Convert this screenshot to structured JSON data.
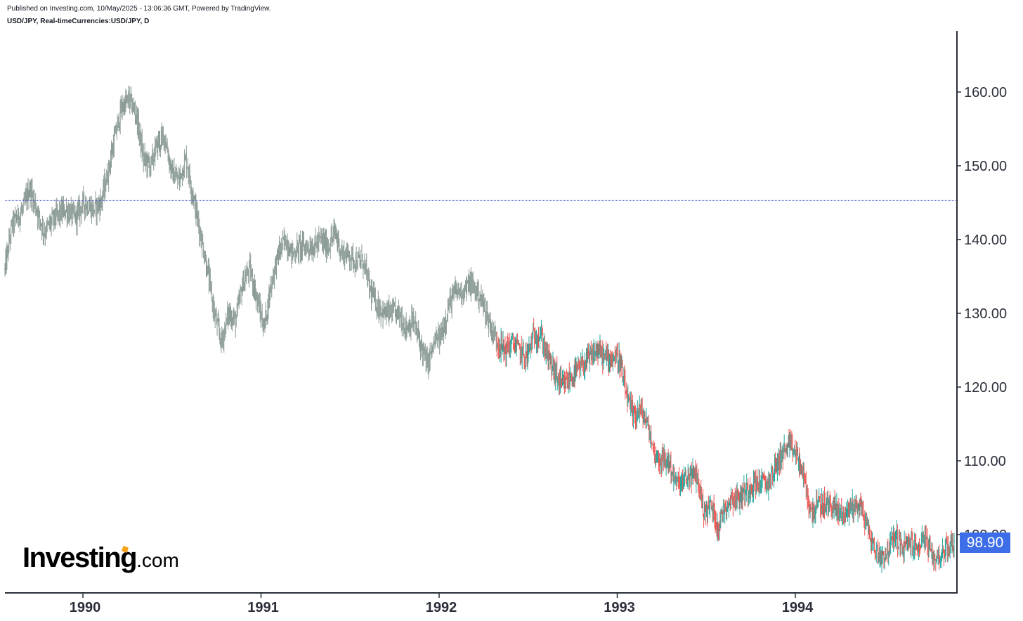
{
  "header": {
    "published": "Published on Investing.com, 10/May/2025 - 13:06:36 GMT, Powered by TradingView.",
    "symbol": "USD/JPY, Real-timeCurrencies:USD/JPY, D"
  },
  "logo": {
    "main": "Investing",
    "suffix": ".com"
  },
  "last_price_label": "98.90",
  "colors": {
    "up": "#26a69a",
    "down": "#ef5350",
    "neutral": "#8a9a94",
    "hline": "#4f5bd5",
    "price_tag": "#3d6ee8"
  },
  "chart_data": {
    "type": "ohlc-bars",
    "interval": "D",
    "xaxis": {
      "labels": [
        "1990",
        "1991",
        "1992",
        "1993",
        "1994"
      ],
      "range": [
        1989.58,
        1994.93
      ]
    },
    "yaxis": {
      "labels": [
        "160.00",
        "150.00",
        "140.00",
        "130.00",
        "120.00",
        "110.00",
        "100.00"
      ],
      "range": [
        92,
        168
      ],
      "side": "right"
    },
    "horizontal_line": 145.3,
    "last_price": 98.9,
    "close_path": [
      [
        1989.58,
        136
      ],
      [
        1989.62,
        142
      ],
      [
        1989.68,
        144
      ],
      [
        1989.72,
        147
      ],
      [
        1989.76,
        144
      ],
      [
        1989.8,
        141
      ],
      [
        1989.86,
        143
      ],
      [
        1989.92,
        144
      ],
      [
        1989.98,
        143
      ],
      [
        1990.02,
        145
      ],
      [
        1990.08,
        144
      ],
      [
        1990.12,
        145
      ],
      [
        1990.16,
        149
      ],
      [
        1990.2,
        154
      ],
      [
        1990.24,
        158
      ],
      [
        1990.28,
        159
      ],
      [
        1990.32,
        157
      ],
      [
        1990.36,
        151
      ],
      [
        1990.4,
        150
      ],
      [
        1990.44,
        153
      ],
      [
        1990.48,
        154
      ],
      [
        1990.52,
        149
      ],
      [
        1990.56,
        148
      ],
      [
        1990.6,
        151
      ],
      [
        1990.64,
        146
      ],
      [
        1990.68,
        141
      ],
      [
        1990.72,
        136
      ],
      [
        1990.76,
        130
      ],
      [
        1990.8,
        126
      ],
      [
        1990.84,
        130
      ],
      [
        1990.88,
        129
      ],
      [
        1990.92,
        134
      ],
      [
        1990.96,
        136
      ],
      [
        1991.0,
        132
      ],
      [
        1991.04,
        128
      ],
      [
        1991.08,
        134
      ],
      [
        1991.12,
        138
      ],
      [
        1991.16,
        140
      ],
      [
        1991.2,
        138
      ],
      [
        1991.24,
        139
      ],
      [
        1991.28,
        139
      ],
      [
        1991.32,
        139
      ],
      [
        1991.36,
        140
      ],
      [
        1991.4,
        139
      ],
      [
        1991.44,
        141
      ],
      [
        1991.48,
        138
      ],
      [
        1991.52,
        138
      ],
      [
        1991.56,
        137
      ],
      [
        1991.6,
        137
      ],
      [
        1991.64,
        133
      ],
      [
        1991.68,
        131
      ],
      [
        1991.72,
        130
      ],
      [
        1991.76,
        130
      ],
      [
        1991.8,
        130
      ],
      [
        1991.84,
        128
      ],
      [
        1991.88,
        129
      ],
      [
        1991.92,
        126
      ],
      [
        1991.96,
        123
      ],
      [
        1992.0,
        126
      ],
      [
        1992.04,
        127
      ],
      [
        1992.08,
        131
      ],
      [
        1992.12,
        133
      ],
      [
        1992.16,
        133
      ],
      [
        1992.2,
        134
      ],
      [
        1992.24,
        133
      ],
      [
        1992.28,
        131
      ],
      [
        1992.32,
        128
      ],
      [
        1992.36,
        126
      ],
      [
        1992.4,
        125
      ],
      [
        1992.44,
        126
      ],
      [
        1992.48,
        125
      ],
      [
        1992.52,
        124
      ],
      [
        1992.56,
        127
      ],
      [
        1992.6,
        127
      ],
      [
        1992.64,
        124
      ],
      [
        1992.68,
        122
      ],
      [
        1992.72,
        120
      ],
      [
        1992.76,
        121
      ],
      [
        1992.8,
        122
      ],
      [
        1992.84,
        123
      ],
      [
        1992.88,
        124
      ],
      [
        1992.92,
        125
      ],
      [
        1992.96,
        124
      ],
      [
        1993.0,
        124
      ],
      [
        1993.04,
        124
      ],
      [
        1993.08,
        119
      ],
      [
        1993.12,
        116
      ],
      [
        1993.16,
        117
      ],
      [
        1993.2,
        115
      ],
      [
        1993.24,
        111
      ],
      [
        1993.28,
        110
      ],
      [
        1993.32,
        110
      ],
      [
        1993.36,
        107
      ],
      [
        1993.4,
        107
      ],
      [
        1993.44,
        108
      ],
      [
        1993.48,
        108
      ],
      [
        1993.52,
        103
      ],
      [
        1993.56,
        104
      ],
      [
        1993.6,
        101
      ],
      [
        1993.64,
        104
      ],
      [
        1993.68,
        105
      ],
      [
        1993.72,
        105
      ],
      [
        1993.76,
        106
      ],
      [
        1993.8,
        107
      ],
      [
        1993.84,
        107
      ],
      [
        1993.88,
        107
      ],
      [
        1993.92,
        109
      ],
      [
        1993.96,
        111
      ],
      [
        1994.0,
        112
      ],
      [
        1994.04,
        111
      ],
      [
        1994.08,
        108
      ],
      [
        1994.12,
        103
      ],
      [
        1994.16,
        104
      ],
      [
        1994.2,
        104
      ],
      [
        1994.24,
        104
      ],
      [
        1994.28,
        103
      ],
      [
        1994.32,
        103
      ],
      [
        1994.36,
        104
      ],
      [
        1994.4,
        104
      ],
      [
        1994.44,
        101
      ],
      [
        1994.48,
        98
      ],
      [
        1994.52,
        97
      ],
      [
        1994.56,
        98
      ],
      [
        1994.6,
        100
      ],
      [
        1994.64,
        98
      ],
      [
        1994.68,
        99
      ],
      [
        1994.72,
        98
      ],
      [
        1994.76,
        100
      ],
      [
        1994.8,
        97
      ],
      [
        1994.84,
        97
      ],
      [
        1994.88,
        98
      ],
      [
        1994.93,
        99
      ]
    ]
  }
}
